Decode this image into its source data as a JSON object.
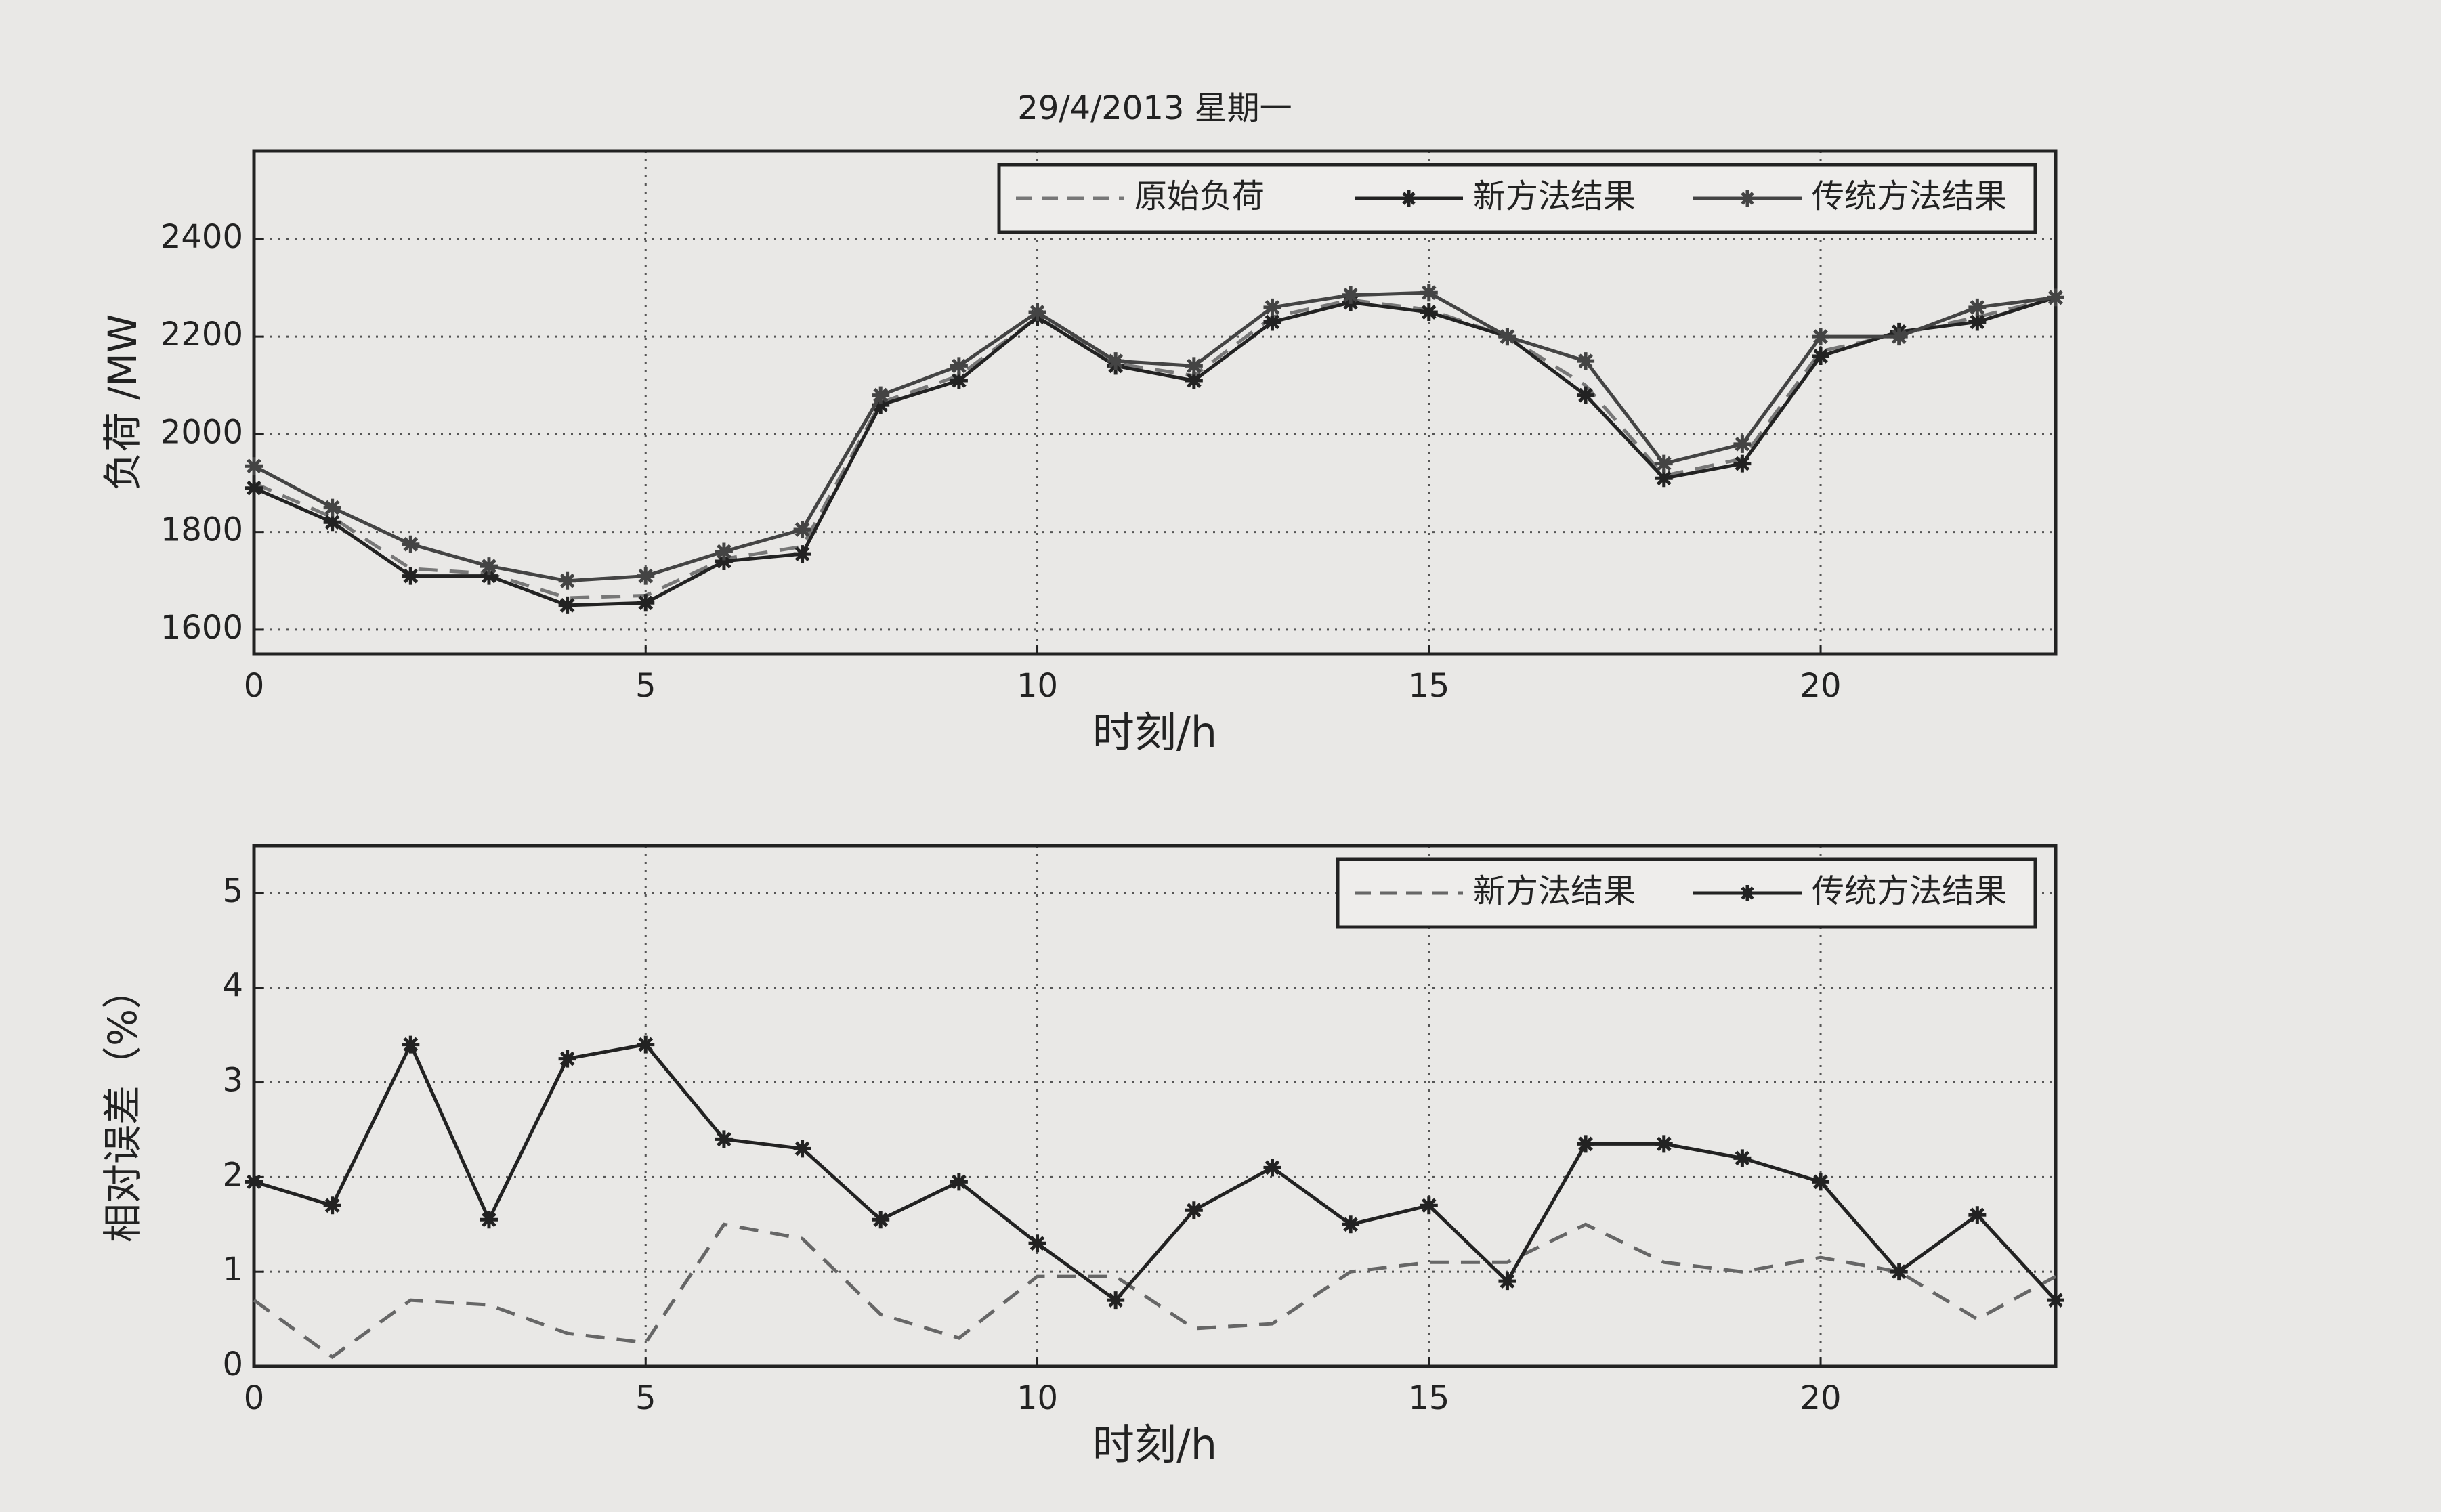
{
  "chart_data": [
    {
      "type": "line",
      "title": "29/4/2013 星期一",
      "xlabel": "时刻/h",
      "ylabel": "负荷 /MW",
      "x": [
        0,
        1,
        2,
        3,
        4,
        5,
        6,
        7,
        8,
        9,
        10,
        11,
        12,
        13,
        14,
        15,
        16,
        17,
        18,
        19,
        20,
        21,
        22,
        23
      ],
      "xlim": [
        0,
        23
      ],
      "xticks": [
        0,
        5,
        10,
        15,
        20
      ],
      "ylim": [
        1550,
        2580
      ],
      "yticks": [
        1600,
        1800,
        2000,
        2200,
        2400
      ],
      "grid": true,
      "legend": "upper right",
      "series": [
        {
          "name": "原始负荷",
          "color": "#777777",
          "linestyle": "--",
          "marker": null,
          "values": [
            1900,
            1830,
            1725,
            1715,
            1665,
            1670,
            1745,
            1770,
            2065,
            2120,
            2240,
            2145,
            2120,
            2240,
            2275,
            2255,
            2200,
            2100,
            1915,
            1950,
            2170,
            2205,
            2240,
            2280
          ]
        },
        {
          "name": "新方法结果",
          "color": "#222222",
          "linestyle": "-",
          "marker": "*",
          "values": [
            1890,
            1820,
            1710,
            1710,
            1650,
            1655,
            1740,
            1755,
            2060,
            2110,
            2240,
            2140,
            2110,
            2230,
            2270,
            2250,
            2200,
            2080,
            1910,
            1940,
            2160,
            2210,
            2230,
            2280
          ]
        },
        {
          "name": "传统方法结果",
          "color": "#444444",
          "linestyle": "-",
          "marker": "*",
          "values": [
            1935,
            1850,
            1775,
            1730,
            1700,
            1710,
            1760,
            1805,
            2080,
            2140,
            2250,
            2150,
            2140,
            2260,
            2285,
            2290,
            2200,
            2150,
            1940,
            1980,
            2200,
            2200,
            2260,
            2280
          ]
        }
      ]
    },
    {
      "type": "line",
      "xlabel": "时刻/h",
      "ylabel": "相对误差（%）",
      "x": [
        0,
        1,
        2,
        3,
        4,
        5,
        6,
        7,
        8,
        9,
        10,
        11,
        12,
        13,
        14,
        15,
        16,
        17,
        18,
        19,
        20,
        21,
        22,
        23
      ],
      "xlim": [
        0,
        23
      ],
      "xticks": [
        0,
        5,
        10,
        15,
        20
      ],
      "ylim": [
        0,
        5.5
      ],
      "yticks": [
        0,
        1,
        2,
        3,
        4,
        5
      ],
      "grid": true,
      "legend": "upper right",
      "series": [
        {
          "name": "新方法结果",
          "color": "#666666",
          "linestyle": "--",
          "marker": null,
          "values": [
            0.7,
            0.1,
            0.7,
            0.65,
            0.35,
            0.25,
            1.5,
            1.35,
            0.55,
            0.3,
            0.95,
            0.95,
            0.4,
            0.45,
            1.0,
            1.1,
            1.1,
            1.5,
            1.1,
            1.0,
            1.15,
            1.0,
            0.5,
            0.95
          ]
        },
        {
          "name": "传统方法结果",
          "color": "#222222",
          "linestyle": "-",
          "marker": "*",
          "values": [
            1.95,
            1.7,
            3.4,
            1.55,
            3.25,
            3.4,
            2.4,
            2.3,
            1.55,
            1.95,
            1.3,
            0.7,
            1.65,
            2.1,
            1.5,
            1.7,
            0.9,
            2.35,
            2.35,
            2.2,
            1.95,
            1.0,
            1.6,
            0.7
          ]
        }
      ]
    }
  ]
}
